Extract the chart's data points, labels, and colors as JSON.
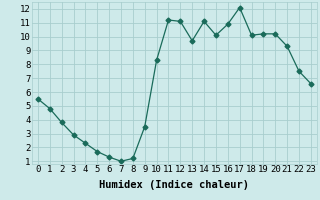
{
  "x": [
    0,
    1,
    2,
    3,
    4,
    5,
    6,
    7,
    8,
    9,
    10,
    11,
    12,
    13,
    14,
    15,
    16,
    17,
    18,
    19,
    20,
    21,
    22,
    23
  ],
  "y": [
    5.5,
    4.8,
    3.8,
    2.9,
    2.3,
    1.7,
    1.3,
    1.0,
    1.2,
    3.5,
    8.3,
    11.2,
    11.1,
    9.7,
    11.1,
    10.1,
    10.9,
    12.1,
    10.1,
    10.2,
    10.2,
    9.3,
    7.5,
    6.6
  ],
  "xlabel": "Humidex (Indice chaleur)",
  "ylim_min": 0.8,
  "ylim_max": 12.5,
  "xlim_min": -0.5,
  "xlim_max": 23.5,
  "yticks": [
    1,
    2,
    3,
    4,
    5,
    6,
    7,
    8,
    9,
    10,
    11,
    12
  ],
  "xticks": [
    0,
    1,
    2,
    3,
    4,
    5,
    6,
    7,
    8,
    9,
    10,
    11,
    12,
    13,
    14,
    15,
    16,
    17,
    18,
    19,
    20,
    21,
    22,
    23
  ],
  "line_color": "#1a6b5a",
  "marker": "D",
  "marker_size": 2.5,
  "bg_color": "#ceeaea",
  "grid_color": "#a8cece",
  "font_family": "monospace",
  "xlabel_fontsize": 7.5,
  "tick_fontsize": 6.5,
  "xlabel_fontweight": "bold"
}
